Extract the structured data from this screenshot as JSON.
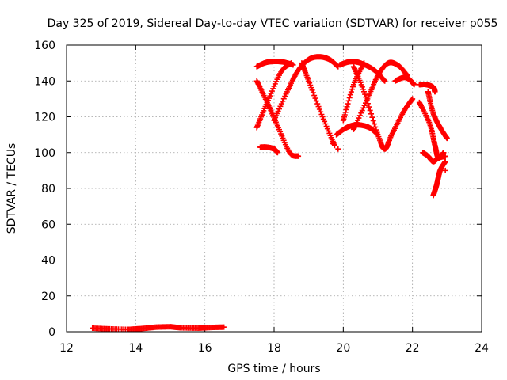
{
  "chart_data": {
    "type": "scatter",
    "title": "Day 325 of 2019, Sidereal Day-to-day VTEC variation (SDTVAR) for receiver p055",
    "xlabel": "GPS time / hours",
    "ylabel": "SDTVAR / TECUs",
    "xlim": [
      12,
      24
    ],
    "ylim": [
      0,
      160
    ],
    "xticks": [
      "12",
      "14",
      "16",
      "18",
      "20",
      "22",
      "24"
    ],
    "yticks": [
      "0",
      "20",
      "40",
      "60",
      "80",
      "100",
      "120",
      "140",
      "160"
    ],
    "grid": true,
    "marker": "plus",
    "color": "#ff0000",
    "series": [
      {
        "name": "low-early",
        "kind": "segments",
        "points": [
          [
            12.75,
            2.0
          ],
          [
            13.2,
            1.6
          ],
          [
            13.8,
            1.3
          ],
          [
            14.2,
            1.8
          ],
          [
            14.6,
            2.6
          ],
          [
            15.0,
            2.8
          ],
          [
            15.3,
            2.2
          ],
          [
            15.8,
            2.0
          ],
          [
            16.2,
            2.4
          ],
          [
            16.55,
            2.6
          ]
        ]
      },
      {
        "name": "arc-1",
        "kind": "curve",
        "points": [
          [
            17.5,
            148
          ],
          [
            17.8,
            150.5
          ],
          [
            18.2,
            150.8
          ],
          [
            18.55,
            149
          ]
        ]
      },
      {
        "name": "arc-2",
        "kind": "curve",
        "points": [
          [
            18.0,
            118
          ],
          [
            18.4,
            135
          ],
          [
            18.7,
            146
          ],
          [
            19.0,
            152
          ],
          [
            19.3,
            153.5
          ],
          [
            19.6,
            152
          ],
          [
            19.85,
            148
          ]
        ]
      },
      {
        "name": "arc-3",
        "kind": "curve",
        "points": [
          [
            19.9,
            149
          ],
          [
            20.2,
            150.8
          ],
          [
            20.5,
            150
          ],
          [
            20.9,
            146
          ],
          [
            21.2,
            140
          ]
        ]
      },
      {
        "name": "arc-4",
        "kind": "curve",
        "points": [
          [
            20.3,
            113
          ],
          [
            20.7,
            130
          ],
          [
            21.0,
            143
          ],
          [
            21.3,
            150
          ],
          [
            21.6,
            148.5
          ],
          [
            21.85,
            143
          ]
        ]
      },
      {
        "name": "arc-5",
        "kind": "curve",
        "points": [
          [
            21.5,
            140
          ],
          [
            21.75,
            142
          ],
          [
            21.9,
            141
          ],
          [
            22.05,
            138
          ]
        ]
      },
      {
        "name": "x-1a",
        "kind": "curve",
        "points": [
          [
            17.5,
            140
          ],
          [
            17.8,
            128
          ],
          [
            18.1,
            115
          ],
          [
            18.45,
            100
          ],
          [
            18.7,
            98
          ]
        ]
      },
      {
        "name": "x-1b",
        "kind": "curve",
        "points": [
          [
            17.5,
            114
          ],
          [
            17.8,
            128
          ],
          [
            18.2,
            145
          ],
          [
            18.5,
            150
          ]
        ]
      },
      {
        "name": "x-2",
        "kind": "curve",
        "points": [
          [
            18.8,
            150
          ],
          [
            19.0,
            140
          ],
          [
            19.4,
            120
          ],
          [
            19.75,
            104
          ]
        ]
      },
      {
        "name": "x-3",
        "kind": "curve",
        "points": [
          [
            20.0,
            118
          ],
          [
            20.3,
            138
          ],
          [
            20.6,
            150
          ]
        ]
      },
      {
        "name": "x-4",
        "kind": "curve",
        "points": [
          [
            20.3,
            148
          ],
          [
            20.6,
            134
          ],
          [
            21.0,
            110
          ],
          [
            21.2,
            102
          ],
          [
            21.4,
            110
          ],
          [
            21.75,
            123
          ],
          [
            22.0,
            130
          ]
        ]
      },
      {
        "name": "low-hump-1",
        "kind": "curve",
        "points": [
          [
            17.6,
            103
          ],
          [
            17.8,
            103
          ],
          [
            18.0,
            102
          ],
          [
            18.1,
            100
          ]
        ]
      },
      {
        "name": "low-hump-2",
        "kind": "curve",
        "points": [
          [
            19.8,
            110
          ],
          [
            20.1,
            114
          ],
          [
            20.4,
            115.5
          ],
          [
            20.75,
            114
          ],
          [
            21.0,
            110
          ]
        ]
      },
      {
        "name": "late-1",
        "kind": "curve",
        "points": [
          [
            22.2,
            138
          ],
          [
            22.4,
            138
          ],
          [
            22.6,
            136.5
          ],
          [
            22.65,
            134
          ]
        ]
      },
      {
        "name": "late-2",
        "kind": "curve",
        "points": [
          [
            22.2,
            128
          ],
          [
            22.5,
            116
          ],
          [
            22.65,
            104
          ],
          [
            22.75,
            97
          ],
          [
            22.9,
            100
          ]
        ]
      },
      {
        "name": "late-3",
        "kind": "curve",
        "points": [
          [
            22.45,
            134
          ],
          [
            22.6,
            122
          ],
          [
            22.8,
            114
          ],
          [
            23.0,
            108
          ]
        ]
      },
      {
        "name": "late-4",
        "kind": "curve",
        "points": [
          [
            22.3,
            100
          ],
          [
            22.45,
            98
          ],
          [
            22.6,
            95
          ],
          [
            22.75,
            97
          ],
          [
            22.95,
            98
          ]
        ]
      },
      {
        "name": "late-dip",
        "kind": "curve",
        "points": [
          [
            22.6,
            76
          ],
          [
            22.7,
            82
          ],
          [
            22.8,
            90
          ],
          [
            22.95,
            95
          ]
        ]
      },
      {
        "name": "stray-marks",
        "kind": "points",
        "points": [
          [
            19.7,
            105
          ],
          [
            19.85,
            102
          ],
          [
            22.95,
            90
          ]
        ]
      }
    ]
  }
}
